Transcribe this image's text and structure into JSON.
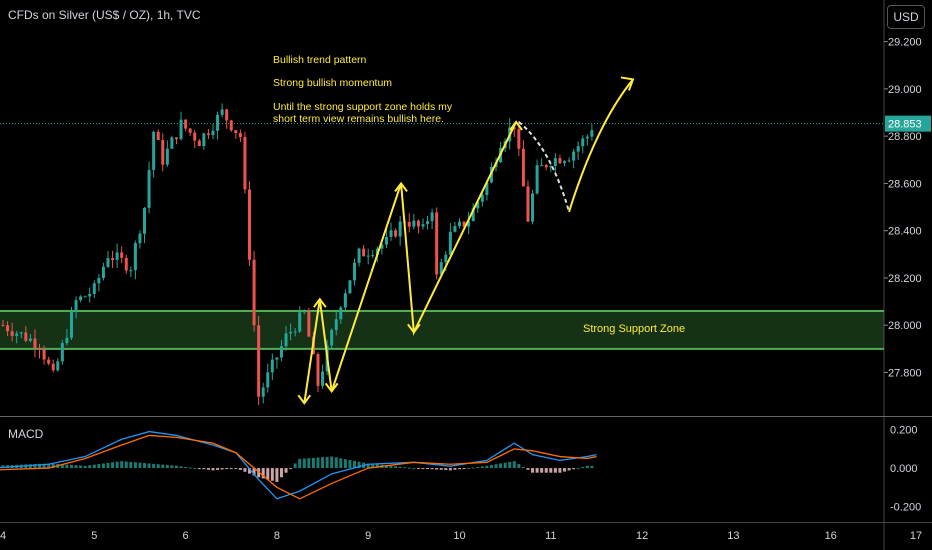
{
  "header": {
    "title": "CFDs on Silver (US$ / OZ), 1h, TVC",
    "currency_button": "USD"
  },
  "annotations": {
    "line1": "Bullish trend pattern",
    "line2": "Strong bullish momentum",
    "line3a": "Until the strong support zone holds my",
    "line3b": "short term view remains bullish here.",
    "support_zone": "Strong Support Zone"
  },
  "macd_panel": {
    "label": "MACD"
  },
  "colors": {
    "up": "#26a69a",
    "down": "#ef5350",
    "annotation": "#ffeb3b",
    "zone": "#4caf50",
    "macd": "#2196f3",
    "signal": "#ff6d00"
  },
  "chart_data": {
    "type": "candlestick",
    "title": "CFDs on Silver (US$ / OZ), 1h, TVC",
    "x_tick_labels": [
      "4",
      "5",
      "6",
      "8",
      "9",
      "10",
      "11",
      "12",
      "13",
      "16",
      "17"
    ],
    "price_axis": {
      "ylim": [
        27.62,
        29.3
      ],
      "ticks": [
        "29.200",
        "29.000",
        "28.800",
        "28.600",
        "28.400",
        "28.200",
        "28.000",
        "27.800"
      ]
    },
    "last_price": "28.853",
    "last_price_value": 28.853,
    "support_zone": {
      "low": 27.9,
      "high": 28.06,
      "label": "Strong Support Zone"
    },
    "price_path": [
      [
        4.0,
        28.0
      ],
      [
        4.4,
        27.92
      ],
      [
        4.55,
        27.78
      ],
      [
        4.8,
        28.1
      ],
      [
        5.0,
        28.15
      ],
      [
        5.15,
        28.3
      ],
      [
        5.4,
        28.25
      ],
      [
        5.55,
        28.5
      ],
      [
        5.65,
        28.82
      ],
      [
        5.75,
        28.7
      ],
      [
        5.95,
        28.85
      ],
      [
        6.15,
        28.78
      ],
      [
        6.4,
        28.9
      ],
      [
        6.6,
        28.8
      ],
      [
        6.7,
        28.3
      ],
      [
        6.8,
        27.7
      ],
      [
        7.1,
        27.95
      ],
      [
        7.3,
        28.05
      ],
      [
        7.45,
        27.75
      ],
      [
        7.7,
        28.1
      ],
      [
        7.9,
        28.3
      ],
      [
        8.2,
        28.35
      ],
      [
        8.4,
        28.45
      ],
      [
        8.6,
        28.4
      ],
      [
        8.7,
        28.5
      ],
      [
        8.75,
        28.2
      ],
      [
        8.9,
        28.38
      ],
      [
        9.1,
        28.45
      ],
      [
        9.3,
        28.6
      ],
      [
        9.45,
        28.78
      ],
      [
        9.6,
        28.85
      ],
      [
        9.75,
        28.45
      ],
      [
        9.85,
        28.65
      ],
      [
        10.0,
        28.7
      ],
      [
        10.2,
        28.72
      ],
      [
        10.4,
        28.8
      ],
      [
        10.5,
        28.88
      ]
    ],
    "macd_axis": {
      "ylim": [
        -0.26,
        0.24
      ],
      "ticks": [
        "0.200",
        "0.000",
        "-0.200"
      ]
    },
    "macd_line": [
      [
        3.9,
        0.0
      ],
      [
        4.5,
        0.02
      ],
      [
        4.9,
        0.06
      ],
      [
        5.3,
        0.15
      ],
      [
        5.6,
        0.19
      ],
      [
        5.9,
        0.17
      ],
      [
        6.3,
        0.12
      ],
      [
        6.55,
        0.08
      ],
      [
        6.8,
        -0.06
      ],
      [
        7.0,
        -0.16
      ],
      [
        7.25,
        -0.12
      ],
      [
        7.6,
        -0.03
      ],
      [
        8.0,
        0.02
      ],
      [
        8.5,
        0.03
      ],
      [
        8.9,
        0.01
      ],
      [
        9.3,
        0.04
      ],
      [
        9.6,
        0.13
      ],
      [
        9.8,
        0.07
      ],
      [
        10.1,
        0.04
      ],
      [
        10.4,
        0.06
      ],
      [
        10.5,
        0.07
      ]
    ],
    "signal_line": [
      [
        3.9,
        -0.01
      ],
      [
        4.5,
        0.0
      ],
      [
        4.9,
        0.05
      ],
      [
        5.3,
        0.12
      ],
      [
        5.6,
        0.17
      ],
      [
        5.9,
        0.16
      ],
      [
        6.3,
        0.13
      ],
      [
        6.55,
        0.08
      ],
      [
        6.8,
        -0.02
      ],
      [
        7.0,
        -0.1
      ],
      [
        7.25,
        -0.16
      ],
      [
        7.6,
        -0.08
      ],
      [
        8.0,
        0.0
      ],
      [
        8.5,
        0.03
      ],
      [
        8.9,
        0.02
      ],
      [
        9.3,
        0.03
      ],
      [
        9.6,
        0.1
      ],
      [
        9.8,
        0.09
      ],
      [
        10.1,
        0.06
      ],
      [
        10.4,
        0.05
      ],
      [
        10.5,
        0.06
      ]
    ],
    "hand_drawn_path": [
      [
        7.3,
        27.67
      ],
      [
        7.47,
        28.11
      ],
      [
        7.6,
        27.72
      ],
      [
        8.36,
        28.6
      ],
      [
        8.5,
        27.97
      ],
      [
        9.62,
        28.86
      ]
    ],
    "projection_down": [
      [
        9.65,
        28.86
      ],
      [
        10.0,
        28.75
      ],
      [
        10.2,
        28.48
      ]
    ],
    "projection_up": [
      [
        10.2,
        28.48
      ],
      [
        10.5,
        28.85
      ],
      [
        10.9,
        29.04
      ]
    ]
  }
}
